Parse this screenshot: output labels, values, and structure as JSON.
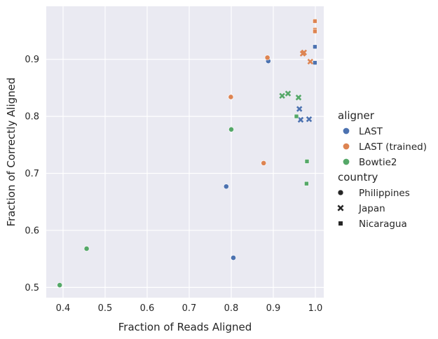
{
  "chart_data": {
    "type": "scatter",
    "xlabel": "Fraction of Reads Aligned",
    "ylabel": "Fraction of Correctly Aligned",
    "xlim": [
      0.36,
      1.02
    ],
    "ylim": [
      0.482,
      0.993
    ],
    "xticks": [
      0.4,
      0.5,
      0.6,
      0.7,
      0.8,
      0.9,
      1.0
    ],
    "xtick_labels": [
      "0.4",
      "0.5",
      "0.6",
      "0.7",
      "0.8",
      "0.9",
      "1.0"
    ],
    "yticks": [
      0.5,
      0.6,
      0.7,
      0.8,
      0.9
    ],
    "ytick_labels": [
      "0.5",
      "0.6",
      "0.7",
      "0.8",
      "0.9"
    ],
    "grid": true,
    "background": "#eaeaf2",
    "legend": {
      "placement": "right",
      "hue_title": "aligner",
      "style_title": "country",
      "hue_entries": [
        {
          "label": "LAST",
          "color": "#4c72b0"
        },
        {
          "label": "LAST (trained)",
          "color": "#dd8452"
        },
        {
          "label": "Bowtie2",
          "color": "#55a868"
        }
      ],
      "style_entries": [
        {
          "label": "Philippines",
          "marker": "circle"
        },
        {
          "label": "Japan",
          "marker": "x"
        },
        {
          "label": "Nicaragua",
          "marker": "square"
        }
      ]
    },
    "series": [
      {
        "aligner": "LAST",
        "country": "Philippines",
        "points": [
          [
            0.888,
            0.897
          ],
          [
            0.788,
            0.677
          ],
          [
            0.805,
            0.552
          ]
        ]
      },
      {
        "aligner": "LAST",
        "country": "Japan",
        "points": [
          [
            0.962,
            0.813
          ],
          [
            0.965,
            0.794
          ],
          [
            0.985,
            0.795
          ]
        ]
      },
      {
        "aligner": "LAST",
        "country": "Nicaragua",
        "points": [
          [
            0.999,
            0.922
          ],
          [
            0.999,
            0.894
          ]
        ]
      },
      {
        "aligner": "LAST (trained)",
        "country": "Philippines",
        "points": [
          [
            0.886,
            0.903
          ],
          [
            0.799,
            0.834
          ],
          [
            0.877,
            0.718
          ]
        ]
      },
      {
        "aligner": "LAST (trained)",
        "country": "Japan",
        "points": [
          [
            0.97,
            0.91
          ],
          [
            0.973,
            0.912
          ],
          [
            0.988,
            0.896
          ]
        ]
      },
      {
        "aligner": "LAST (trained)",
        "country": "Nicaragua",
        "points": [
          [
            0.999,
            0.967
          ],
          [
            0.999,
            0.952
          ],
          [
            0.999,
            0.949
          ]
        ]
      },
      {
        "aligner": "Bowtie2",
        "country": "Philippines",
        "points": [
          [
            0.8,
            0.777
          ],
          [
            0.456,
            0.568
          ],
          [
            0.392,
            0.504
          ]
        ]
      },
      {
        "aligner": "Bowtie2",
        "country": "Japan",
        "points": [
          [
            0.921,
            0.836
          ],
          [
            0.935,
            0.84
          ],
          [
            0.96,
            0.833
          ]
        ]
      },
      {
        "aligner": "Bowtie2",
        "country": "Nicaragua",
        "points": [
          [
            0.955,
            0.8
          ],
          [
            0.98,
            0.721
          ],
          [
            0.979,
            0.682
          ]
        ]
      }
    ]
  }
}
